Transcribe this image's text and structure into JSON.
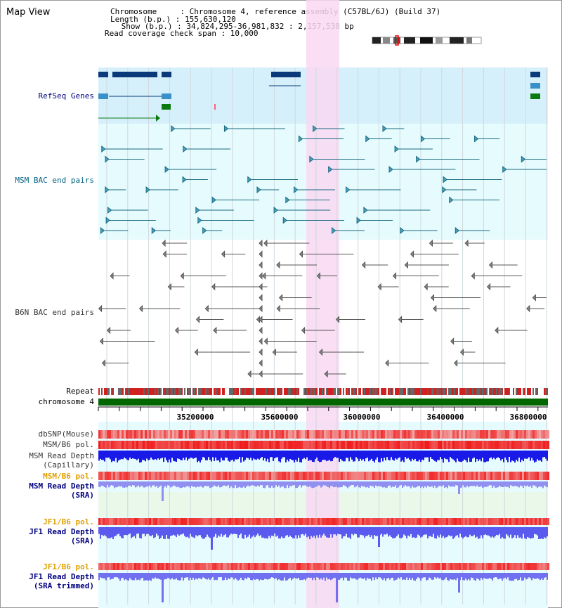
{
  "app": {
    "title": "Map View"
  },
  "info": {
    "lines": [
      "Chromosome     : Chromosome 4, reference assembly (C57BL/6J) (Build 37)",
      "Length (b.p.) : 155,630,120",
      " Show (b.p.) : 34,824,295-36,981,832 : 2,157,538 bp",
      "Read coverage check span : 10,000"
    ]
  },
  "tracks": {
    "refseq": "RefSeq Genes",
    "msm_bac": "MSM BAC end pairs",
    "b6n_bac": "B6N BAC end pairs",
    "repeat": "Repeat",
    "chromosome": "chromosome 4",
    "dbsnp": "dbSNP(Mouse)",
    "msm_b6_pol": "MSM/B6 pol.",
    "msm_depth_cap_1": "MSM Read Depth",
    "msm_depth_cap_2": "(Capillary)",
    "msm_b6_pol2": "MSM/B6 pol.",
    "msm_depth_sra_1": "MSM Read Depth",
    "msm_depth_sra_2": "(SRA)",
    "jf1_b6_pol": "JF1/B6 pol.",
    "jf1_depth_sra_1": "JF1 Read Depth",
    "jf1_depth_sra_2": "(SRA)",
    "jf1_b6_pol2": "JF1/B6 pol.",
    "jf1_depth_trim_1": "JF1 Read Depth",
    "jf1_depth_trim_2": "(SRA trimmed)"
  },
  "axis": {
    "ticks": [
      "35200000",
      "35600000",
      "36000000",
      "36400000",
      "36800000"
    ]
  },
  "colors": {
    "refseq_bg": "#d6f0fb",
    "msm_bg": "#e6fbfd",
    "highlight": "#f8d8f2",
    "msm_label": "#006080",
    "navy": "#000080",
    "orange": "#e0a000",
    "chrom_green": "#006600"
  }
}
